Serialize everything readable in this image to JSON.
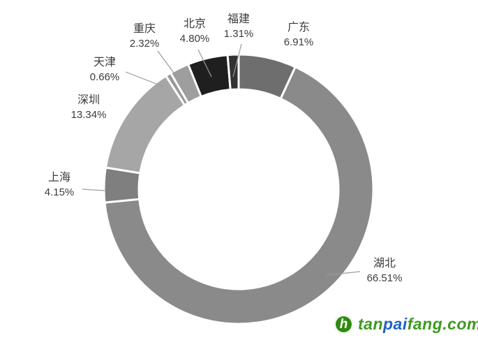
{
  "chart_data": {
    "type": "pie",
    "subtype": "donut",
    "title": "",
    "unit": "%",
    "start_angle_deg": 0,
    "clockwise": true,
    "hole_ratio": 0.74,
    "legend": "none",
    "label_style": "category name and percent outside slice with gray leader lines",
    "background": "#ffffff",
    "slices": [
      {
        "key": "guangdong",
        "name": "广东",
        "value": 6.91,
        "label": "6.91%",
        "color": "#6e6e6e"
      },
      {
        "key": "hubei",
        "name": "湖北",
        "value": 66.51,
        "label": "66.51%",
        "color": "#8a8a8a"
      },
      {
        "key": "shanghai",
        "name": "上海",
        "value": 4.15,
        "label": "4.15%",
        "color": "#7f7f7f"
      },
      {
        "key": "shenzhen",
        "name": "深圳",
        "value": 13.34,
        "label": "13.34%",
        "color": "#a6a6a6"
      },
      {
        "key": "tianjin",
        "name": "天津",
        "value": 0.66,
        "label": "0.66%",
        "color": "#999999"
      },
      {
        "key": "chongqing",
        "name": "重庆",
        "value": 2.32,
        "label": "2.32%",
        "color": "#9e9e9e"
      },
      {
        "key": "beijing",
        "name": "北京",
        "value": 4.8,
        "label": "4.80%",
        "color": "#1f1f1f"
      },
      {
        "key": "fujian",
        "name": "福建",
        "value": 1.31,
        "label": "1.31%",
        "color": "#333333"
      }
    ],
    "colors": {
      "slice_border": "#ffffff",
      "leader_line": "#9a9a9a",
      "label_text": "#3c3c3c"
    }
  },
  "logo": {
    "icon": "tanpaifang-leaf-icon",
    "icon_glyph": "h",
    "icon_color": "#2e8b12",
    "text_parts": [
      {
        "text": "tan",
        "color": "#3d9a1e"
      },
      {
        "text": "pai",
        "color": "#2161c1"
      },
      {
        "text": "fang.com",
        "color": "#3d9a1e"
      }
    ]
  }
}
